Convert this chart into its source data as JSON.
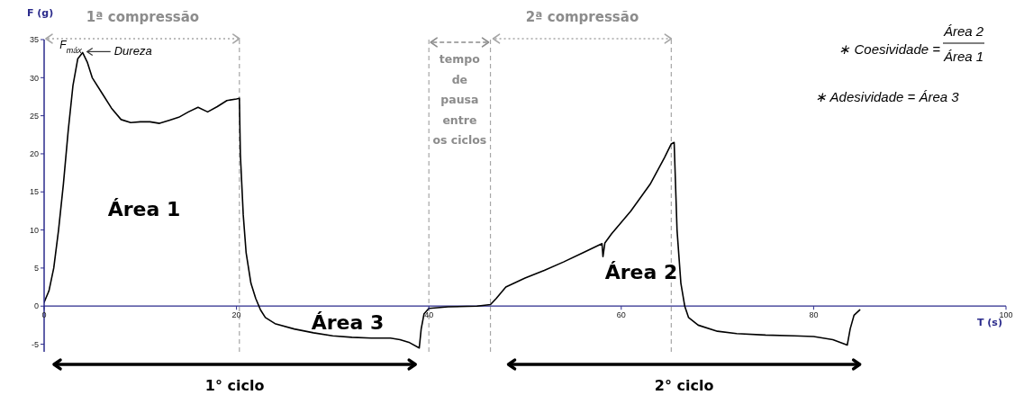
{
  "chart_data": {
    "type": "line",
    "xlabel": "T (s)",
    "ylabel": "F (g)",
    "x": [
      0,
      0.5,
      1,
      1.5,
      2,
      2.5,
      3,
      3.5,
      4,
      4.5,
      5,
      6,
      7,
      8,
      9,
      10,
      11,
      12,
      13,
      14,
      15,
      16,
      17,
      18,
      19,
      20,
      20.3,
      20.4,
      20.7,
      21,
      21.5,
      22,
      22.5,
      23,
      24,
      26,
      28,
      30,
      32,
      34,
      36,
      37,
      38,
      39,
      39.2,
      39.5,
      40,
      42,
      45,
      46.4,
      47,
      48,
      50,
      52,
      54,
      56,
      58,
      58.1,
      58.3,
      59,
      61,
      63,
      64.5,
      65.2,
      65.5,
      65.8,
      66.2,
      66.6,
      67,
      68,
      70,
      72,
      75,
      78,
      80,
      82,
      83.5,
      83.8,
      84.2,
      84.8
    ],
    "series": [
      {
        "color": "#000000",
        "values": [
          0.5,
          2,
          5,
          10,
          16,
          23,
          29,
          32.5,
          33.3,
          32,
          30,
          28,
          26,
          24.5,
          24.1,
          24.2,
          24.2,
          24,
          24.4,
          24.8,
          25.5,
          26.1,
          25.5,
          26.2,
          27,
          27.2,
          27.3,
          20,
          12,
          7,
          3,
          1,
          -0.5,
          -1.5,
          -2.3,
          -3,
          -3.5,
          -3.9,
          -4.1,
          -4.2,
          -4.2,
          -4.4,
          -4.8,
          -5.5,
          -3,
          -1,
          -0.3,
          -0.1,
          0,
          0.2,
          1,
          2.5,
          3.7,
          4.7,
          5.8,
          7,
          8.2,
          6.5,
          8.3,
          9.5,
          12.5,
          16,
          19.5,
          21.3,
          21.5,
          10,
          3,
          0,
          -1.5,
          -2.5,
          -3.3,
          -3.6,
          -3.8,
          -3.9,
          -4,
          -4.4,
          -5.1,
          -3,
          -1.2,
          -0.5
        ]
      }
    ],
    "xlim": [
      0,
      100
    ],
    "xticks": [
      0,
      20,
      40,
      60,
      80,
      100
    ],
    "ylim": [
      -6,
      35
    ],
    "yticks": [
      -5,
      0,
      5,
      10,
      15,
      20,
      25,
      30,
      35
    ],
    "grid": false,
    "marker": "none",
    "line_style": "solid",
    "ref_lines": [
      {
        "axis": "x",
        "value": 20.3,
        "color": "#a6a6a6",
        "line_style": "dashed"
      },
      {
        "axis": "x",
        "value": 40,
        "color": "#a6a6a6",
        "line_style": "dashed"
      },
      {
        "axis": "x",
        "value": 46.4,
        "color": "#a6a6a6",
        "line_style": "dashed"
      },
      {
        "axis": "x",
        "value": 65.2,
        "color": "#a6a6a6",
        "line_style": "dashed"
      }
    ],
    "annotations": [
      "1ª compressão",
      "tempo\nde\npausa\nentre\nos ciclos",
      "2ª compressão",
      "1° ciclo",
      "2° ciclo",
      {
        "text": "F$_{máx}$",
        "x": 4,
        "y": 33.3
      },
      {
        "text": "Dureza",
        "x": 4,
        "y": 33.3
      },
      "Área 1",
      "Área 2",
      "Área 3",
      "∗ Coesividade =",
      "Área 2",
      "Área 1",
      "∗ Adesividade = Área 3"
    ]
  }
}
